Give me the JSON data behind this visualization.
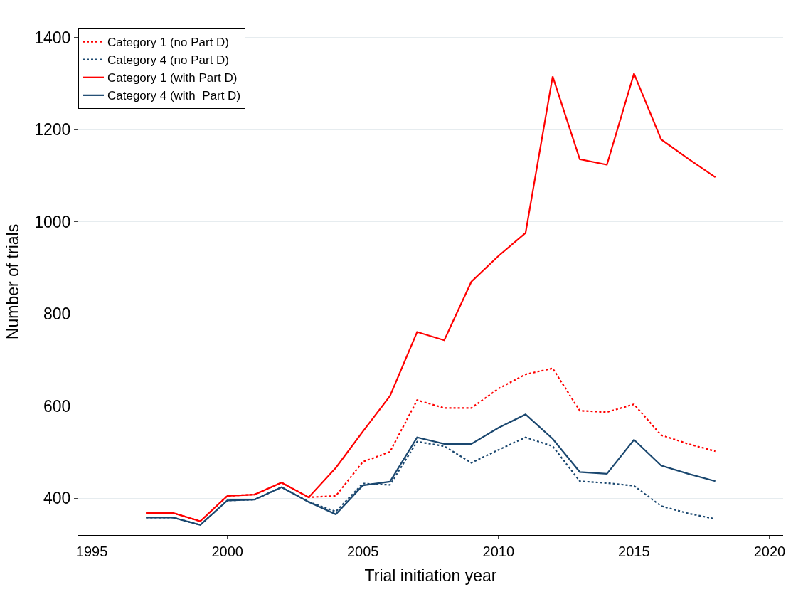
{
  "chart_data": {
    "type": "line",
    "xlabel": "Trial initiation year",
    "ylabel": "Number of trials",
    "x": [
      1997,
      1998,
      1999,
      2000,
      2001,
      2002,
      2003,
      2004,
      2005,
      2006,
      2007,
      2008,
      2009,
      2010,
      2011,
      2012,
      2013,
      2014,
      2015,
      2016,
      2017,
      2018
    ],
    "series": [
      {
        "name": "Category 1 (no Part D)",
        "color": "#ff0000",
        "line_style": "dotted",
        "values": [
          368,
          368,
          350,
          405,
          408,
          434,
          402,
          405,
          479,
          501,
          613,
          596,
          596,
          638,
          669,
          682,
          590,
          587,
          604,
          537,
          518,
          502
        ]
      },
      {
        "name": "Category 4 (no Part D)",
        "color": "#1a476f",
        "line_style": "dotted",
        "values": [
          358,
          358,
          342,
          395,
          397,
          424,
          392,
          371,
          432,
          429,
          523,
          513,
          477,
          505,
          532,
          513,
          437,
          433,
          427,
          383,
          367,
          355
        ]
      },
      {
        "name": "Category 1 (with Part D)",
        "color": "#ff0000",
        "line_style": "solid",
        "values": [
          368,
          368,
          350,
          405,
          408,
          434,
          402,
          466,
          545,
          622,
          761,
          743,
          870,
          926,
          976,
          1316,
          1136,
          1124,
          1322,
          1179,
          1137,
          1097
        ]
      },
      {
        "name": "Category 4 (with  Part D)",
        "color": "#1a476f",
        "line_style": "solid",
        "values": [
          358,
          358,
          342,
          395,
          397,
          424,
          392,
          365,
          428,
          436,
          532,
          518,
          518,
          553,
          582,
          529,
          457,
          453,
          527,
          471,
          453,
          437
        ]
      }
    ],
    "xlim": [
      1994.5,
      2020.5
    ],
    "xticks": [
      1995,
      2000,
      2005,
      2010,
      2015,
      2020
    ],
    "ylim": [
      320,
      1420
    ],
    "yticks": [
      400,
      600,
      800,
      1000,
      1200,
      1400
    ],
    "grid": "y",
    "legend": "top left",
    "marker": "none"
  }
}
